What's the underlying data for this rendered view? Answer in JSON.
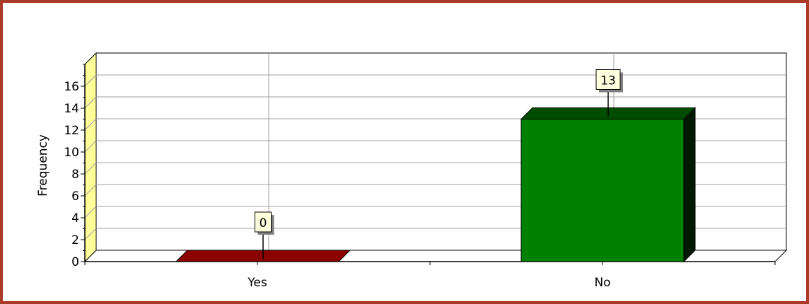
{
  "chart_data": {
    "type": "bar",
    "ylabel": "Frequency",
    "xlabel": "",
    "categories": [
      "Yes",
      "No"
    ],
    "values": [
      0,
      13
    ],
    "data_labels": [
      "0",
      "13"
    ],
    "ylim": [
      0,
      18
    ],
    "yticks": [
      0,
      2,
      4,
      6,
      8,
      10,
      12,
      14,
      16
    ],
    "grid": true,
    "colors": {
      "Yes": {
        "front": "#c00000",
        "top": "#8b0000",
        "side": "#5a0000"
      },
      "No": {
        "front": "#008000",
        "top": "#004d00",
        "side": "#001a00"
      },
      "wall": "#ffff99",
      "frame_border": "#a93a26"
    }
  }
}
